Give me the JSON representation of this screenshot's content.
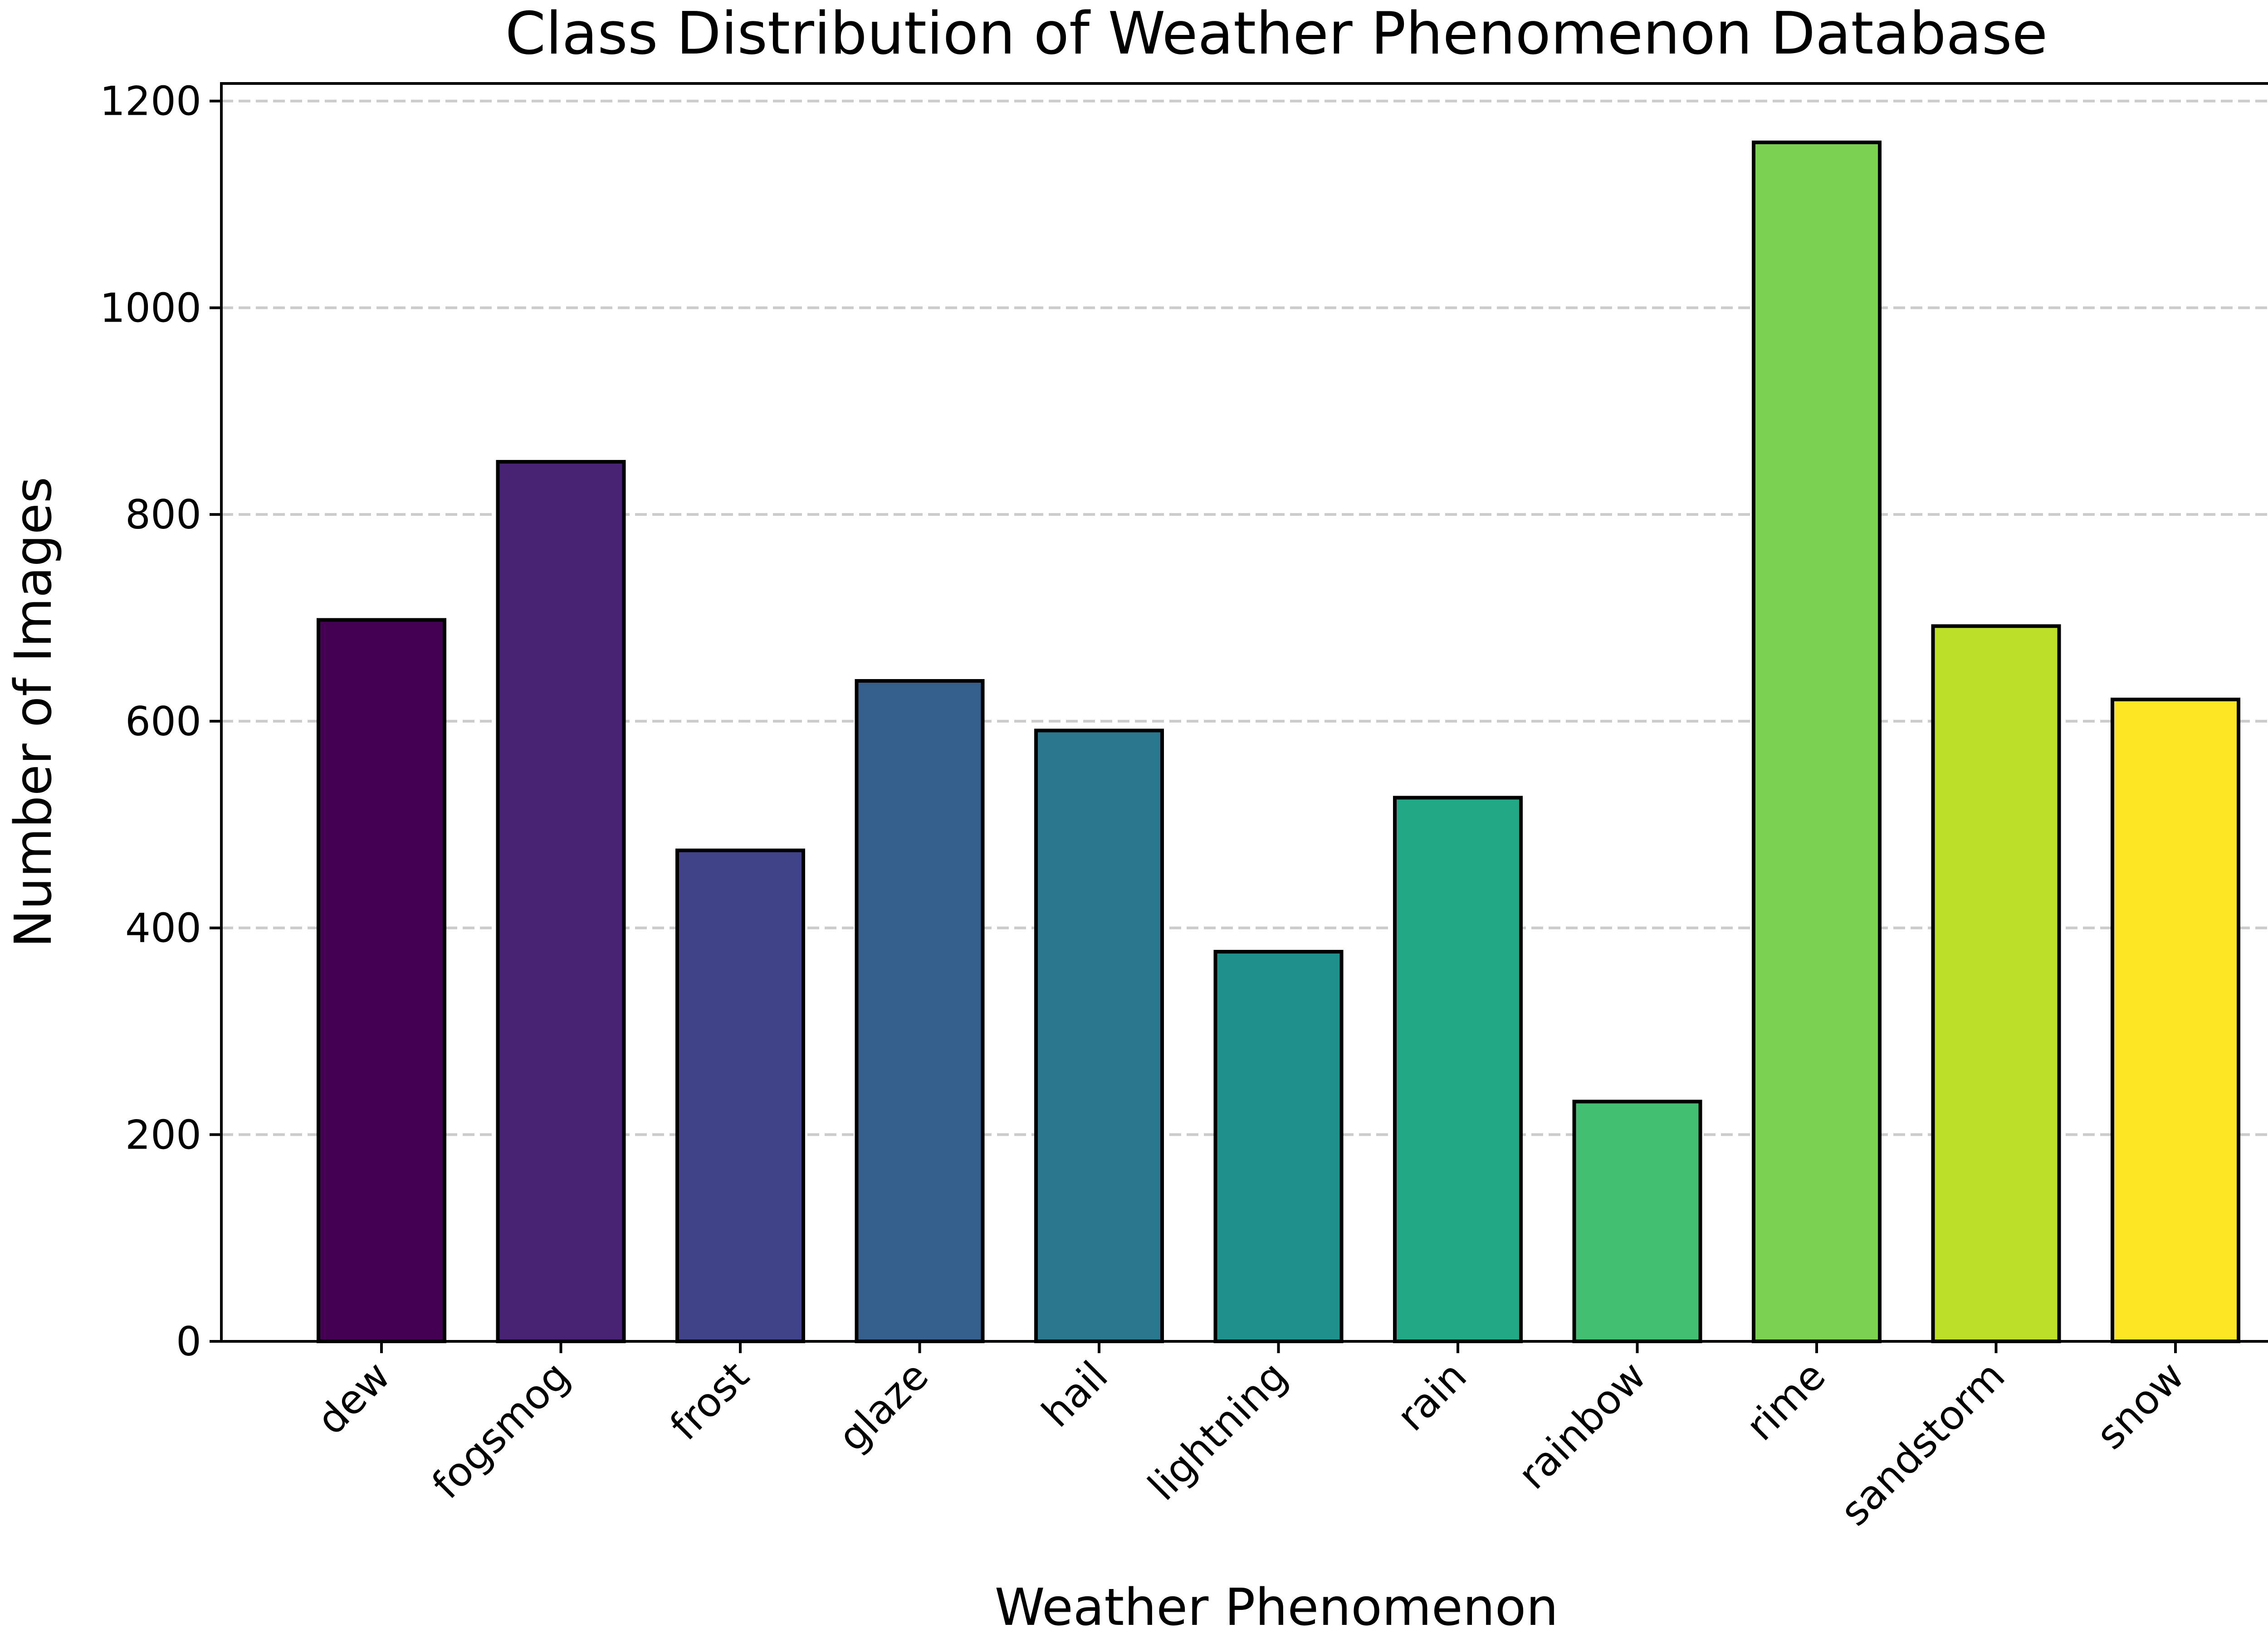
{
  "chart_data": {
    "type": "bar",
    "title": "Class Distribution of Weather Phenomenon Database",
    "xlabel": "Weather Phenomenon",
    "ylabel": "Number of Images",
    "categories": [
      "dew",
      "fogsmog",
      "frost",
      "glaze",
      "hail",
      "lightning",
      "rain",
      "rainbow",
      "rime",
      "sandstorm",
      "snow"
    ],
    "values": [
      698,
      851,
      475,
      639,
      591,
      377,
      526,
      232,
      1160,
      692,
      621
    ],
    "colors": [
      "#440154",
      "#482374",
      "#404387",
      "#345f8d",
      "#2a788e",
      "#20908d",
      "#22a884",
      "#43bf71",
      "#7ad151",
      "#bcdf27",
      "#fde725"
    ],
    "edge_color": "#000000",
    "ylim": [
      0,
      1217
    ],
    "yticks": [
      0,
      200,
      400,
      600,
      800,
      1000,
      1200
    ],
    "grid": "y-dashed",
    "legend": "none"
  }
}
